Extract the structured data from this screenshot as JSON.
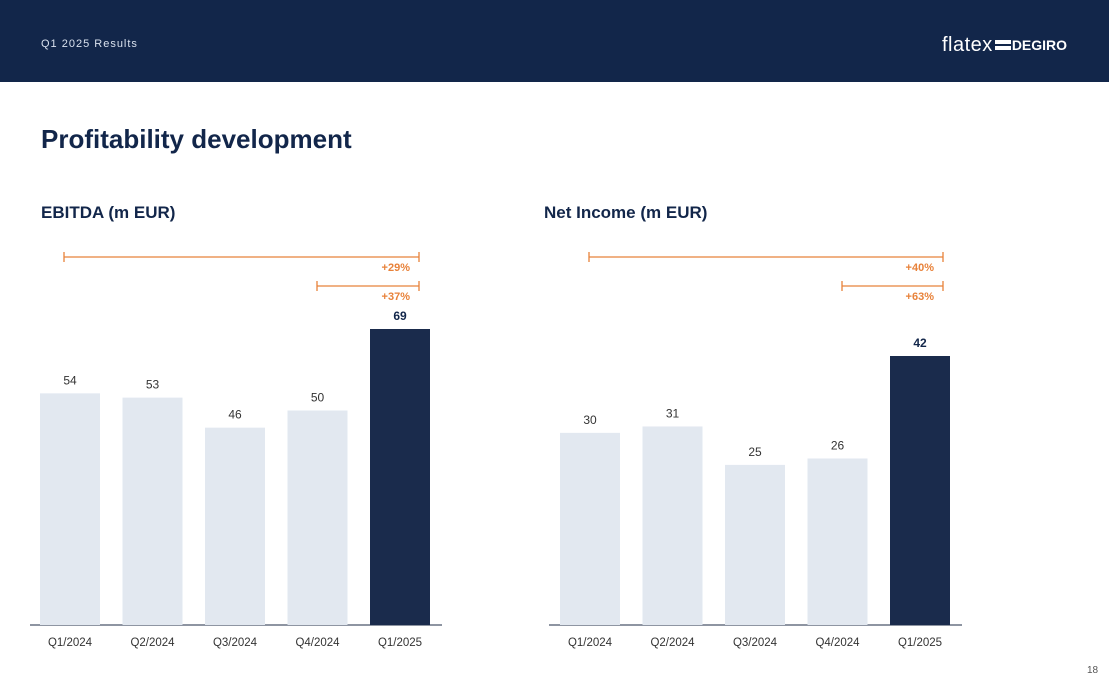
{
  "header": {
    "subtitle": "Q1 2025 Results",
    "logo_part1": "flatex",
    "logo_part2": "DEGIRO",
    "logo_icon": "double-bar-icon"
  },
  "page": {
    "title": "Profitability development",
    "number": "18"
  },
  "colors": {
    "header_bg": "#12264a",
    "bar_light": "#e2e8f0",
    "bar_dark": "#1a2b4c",
    "accent": "#e8823a",
    "text_dark": "#12264a"
  },
  "chart_data": [
    {
      "type": "bar",
      "title": "EBITDA (m EUR)",
      "categories": [
        "Q1/2024",
        "Q2/2024",
        "Q3/2024",
        "Q4/2024",
        "Q1/2025"
      ],
      "values": [
        54,
        53,
        46,
        50,
        69
      ],
      "labels": [
        "54",
        "53",
        "46",
        "50",
        "69"
      ],
      "highlight_index": 4,
      "ylim": [
        0,
        80
      ],
      "annotations": [
        {
          "from": "Q1/2024",
          "to": "Q1/2025",
          "label": "+29%"
        },
        {
          "from": "Q4/2024",
          "to": "Q1/2025",
          "label": "+37%"
        }
      ]
    },
    {
      "type": "bar",
      "title": "Net Income (m EUR)",
      "categories": [
        "Q1/2024",
        "Q2/2024",
        "Q3/2024",
        "Q4/2024",
        "Q1/2025"
      ],
      "values": [
        30,
        31,
        25,
        26,
        42
      ],
      "labels": [
        "30",
        "31",
        "25",
        "26",
        "42"
      ],
      "highlight_index": 4,
      "ylim": [
        0,
        50
      ],
      "annotations": [
        {
          "from": "Q1/2024",
          "to": "Q1/2025",
          "label": "+40%"
        },
        {
          "from": "Q4/2024",
          "to": "Q1/2025",
          "label": "+63%"
        }
      ]
    }
  ]
}
